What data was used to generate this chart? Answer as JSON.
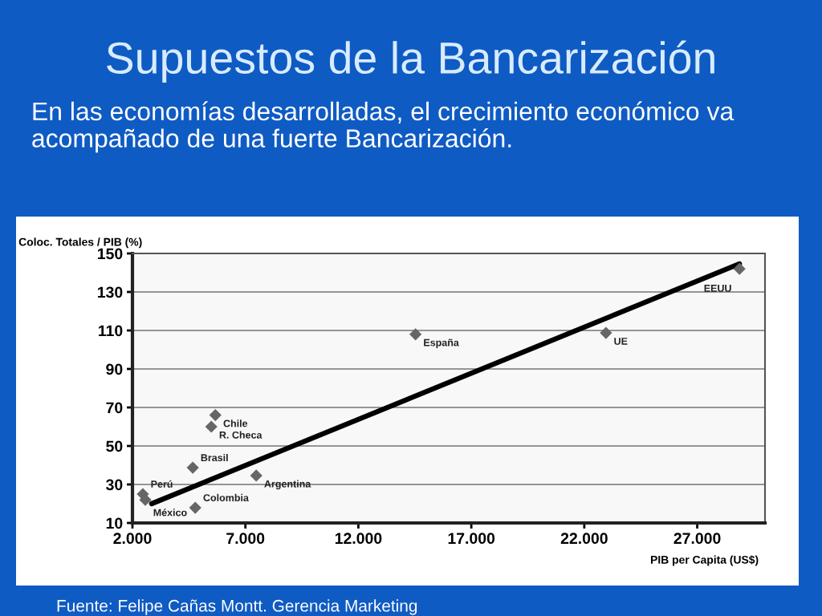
{
  "chart_data": {
    "type": "scatter",
    "title": "Supuestos de la Bancarización",
    "subtitle": "En las economías desarrolladas, el crecimiento económico va acompañado de una fuerte Bancarización.",
    "xlabel": "PIB per Capita (US$)",
    "ylabel": "Coloc. Totales / PIB (%)",
    "series": [
      {
        "color": "#666666",
        "marker": "diamond",
        "x": [
          2460,
          2570,
          4670,
          4780,
          5490,
          5670,
          7480,
          14530,
          22960,
          28870
        ],
        "values": [
          25,
          22,
          38.7,
          17.9,
          60,
          66,
          34.6,
          108,
          108.7,
          142
        ]
      },
      {
        "type": "line",
        "color": "#000000",
        "marker": "none",
        "line_style": "solid",
        "x": [
          2850,
          28870
        ],
        "values": [
          20,
          144.6
        ]
      }
    ],
    "xlim": [
      2000,
      30000
    ],
    "ylim": [
      10,
      150
    ],
    "xticks": [
      {
        "value": 2000,
        "label": "2.000"
      },
      {
        "value": 7000,
        "label": "7.000"
      },
      {
        "value": 12000,
        "label": "12.000"
      },
      {
        "value": 17000,
        "label": "17.000"
      },
      {
        "value": 22000,
        "label": "22.000"
      },
      {
        "value": 27000,
        "label": "27.000"
      }
    ],
    "yticks": [
      10,
      30,
      50,
      70,
      90,
      110,
      130,
      150
    ],
    "grid": "y",
    "legend": false,
    "annotations": [
      {
        "text": "Chile",
        "x": 5670,
        "y": 66
      },
      {
        "text": "R. Checa",
        "x": 5490,
        "y": 60
      },
      {
        "text": "Brasil",
        "x": 4670,
        "y": 38.7
      },
      {
        "text": "Argentina",
        "x": 7480,
        "y": 34.6
      },
      {
        "text": "Perú",
        "x": 2460,
        "y": 25
      },
      {
        "text": "México",
        "x": 2570,
        "y": 22
      },
      {
        "text": "Colombia",
        "x": 4780,
        "y": 17.9
      },
      {
        "text": "España",
        "x": 14530,
        "y": 108
      },
      {
        "text": "UE",
        "x": 22960,
        "y": 108.7
      },
      {
        "text": "EEUU",
        "x": 28870,
        "y": 142
      },
      "Fuente: Felipe Cañas Montt. Gerencia Marketing"
    ]
  }
}
